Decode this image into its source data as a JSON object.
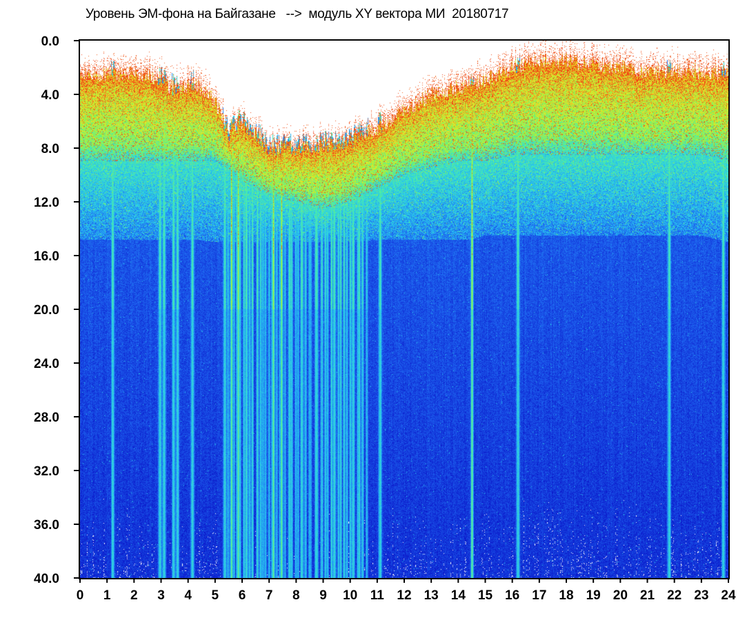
{
  "chart_data": {
    "type": "heatmap",
    "title": "Уровень ЭМ-фона на Байгазане   -->  модуль XY вектора МИ  20180717",
    "xlabel": "",
    "ylabel": "",
    "x_ticks": [
      "0",
      "1",
      "2",
      "3",
      "4",
      "5",
      "6",
      "7",
      "8",
      "9",
      "10",
      "11",
      "12",
      "13",
      "14",
      "15",
      "16",
      "17",
      "18",
      "19",
      "20",
      "21",
      "22",
      "23",
      "24"
    ],
    "y_ticks": [
      "0.0",
      "4.0",
      "8.0",
      "12.0",
      "16.0",
      "20.0",
      "24.0",
      "28.0",
      "32.0",
      "36.0",
      "40.0"
    ],
    "xlim": [
      0,
      24
    ],
    "ylim": [
      0,
      40
    ],
    "y_inverted": true,
    "colorscale": [
      "#0a14c8",
      "#1e64f0",
      "#28c8f0",
      "#50f0a0",
      "#a0f03c",
      "#f0e628",
      "#f03c14"
    ],
    "band_profile": {
      "hours": [
        0,
        1,
        2,
        2.9,
        3.5,
        4.3,
        5.0,
        5.5,
        6.0,
        7.0,
        8.0,
        9.0,
        10.0,
        11.0,
        12.0,
        13.0,
        14.0,
        14.5,
        15.0,
        16.0,
        17.0,
        18.0,
        19.0,
        20.0,
        21.0,
        22.0,
        23.0,
        23.6,
        24.0
      ],
      "top_value": [
        2.5,
        2.5,
        2.4,
        2.8,
        3.6,
        3.2,
        4.5,
        7.0,
        6.0,
        8.0,
        8.0,
        7.8,
        7.5,
        6.5,
        5.2,
        4.0,
        3.5,
        3.2,
        3.0,
        2.0,
        1.5,
        1.5,
        1.8,
        2.0,
        2.3,
        2.2,
        2.3,
        2.4,
        2.6
      ],
      "dense_bottom_value": [
        9.0,
        9.0,
        9.0,
        9.0,
        9.0,
        9.0,
        9.0,
        9.5,
        10.5,
        11.5,
        12.0,
        12.5,
        12.0,
        11.0,
        10.0,
        9.5,
        9.0,
        9.0,
        9.0,
        8.5,
        8.5,
        8.5,
        8.5,
        8.5,
        8.5,
        8.5,
        8.5,
        8.7,
        9.0
      ],
      "cyan_bottom_value": [
        14.8,
        14.8,
        14.8,
        14.8,
        14.8,
        14.8,
        15.0,
        15.0,
        15.0,
        15.0,
        15.0,
        15.0,
        15.0,
        14.8,
        14.8,
        14.8,
        14.8,
        14.8,
        14.5,
        14.5,
        14.5,
        14.5,
        14.5,
        14.5,
        14.5,
        14.5,
        14.5,
        14.8,
        15.0
      ]
    },
    "vertical_streaks_hours": [
      1.2,
      2.95,
      3.1,
      3.45,
      3.6,
      4.15,
      5.35,
      5.6,
      5.85,
      6.15,
      7.15,
      7.45,
      7.75,
      8.2,
      8.75,
      9.4,
      10.1,
      11.1,
      14.5,
      16.2,
      21.8,
      23.8
    ],
    "strong_streak_hours": [
      5.6,
      5.85,
      7.15,
      7.45,
      14.5
    ]
  }
}
